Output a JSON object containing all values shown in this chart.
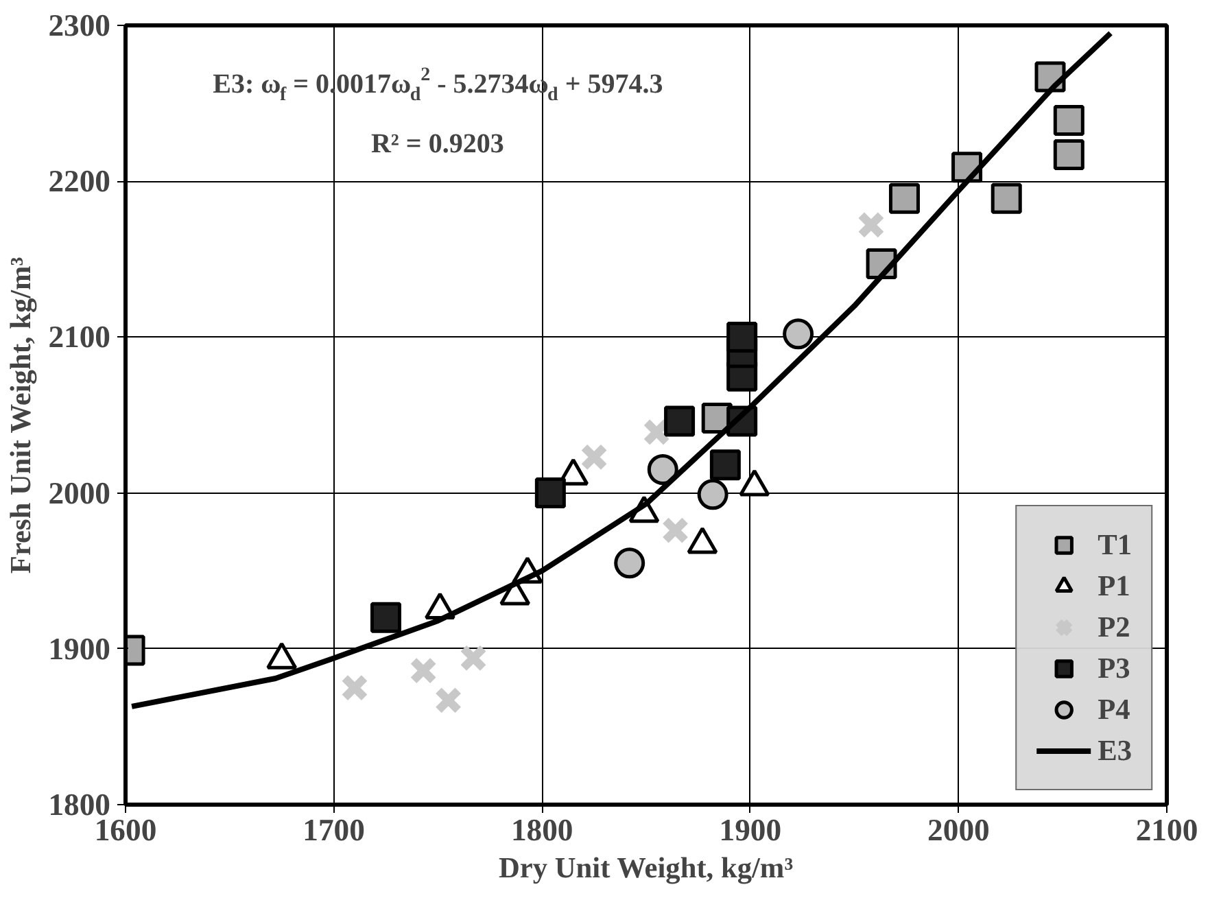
{
  "chart_data": {
    "type": "scatter",
    "xlabel": "Dry Unit Weight, kg/m³",
    "ylabel": "Fresh Unit Weight, kg/m³",
    "xlim": [
      1600,
      2100
    ],
    "ylim": [
      1800,
      2300
    ],
    "xticks": [
      1600,
      1700,
      1800,
      1900,
      2000,
      2100
    ],
    "yticks": [
      1800,
      1900,
      2000,
      2100,
      2200,
      2300
    ],
    "grid": true,
    "legend": "bottom right",
    "annotations": [
      "E3: ω$_{f}$ = 0.0017ω$_{d}$$^{2}$ - 5.2734ω$_{d}$ + 5974.3",
      "R² = 0.9203"
    ],
    "series": [
      {
        "name": "T1",
        "color": "#a8a8a8",
        "marker": "square",
        "x": [
          1602,
          1884,
          1895,
          1897,
          1963,
          1974,
          2004,
          2023,
          2044,
          2053,
          2053
        ],
        "values": [
          1899,
          2048,
          null,
          null,
          2147,
          2189,
          2209,
          2189,
          2267,
          2239,
          2217
        ]
      },
      {
        "name": "P1",
        "color": "#ffffff",
        "marker": "triangle",
        "x": [
          1675,
          1751,
          1787,
          1793,
          1815,
          1849,
          1877,
          1902
        ],
        "values": [
          1893,
          1925,
          1934,
          1948,
          2011,
          1987,
          1967,
          2004
        ]
      },
      {
        "name": "P2",
        "color": "#c8c8c8",
        "marker": "cross",
        "x": [
          1710,
          1743,
          1755,
          1767,
          1825,
          1855,
          1864,
          1958
        ],
        "values": [
          1875,
          1886,
          1867,
          1894,
          2023,
          2039,
          1976,
          2172
        ]
      },
      {
        "name": "P3",
        "color": "#202020",
        "marker": "square",
        "x": [
          1725,
          1804,
          1866,
          1888,
          1896,
          1896,
          1896,
          1896
        ],
        "values": [
          1920,
          2000,
          2046,
          2018,
          2046,
          2075,
          2090,
          2100
        ]
      },
      {
        "name": "P4",
        "color": "#c0c0c0",
        "marker": "circle",
        "x": [
          1842,
          1858,
          1882,
          1923
        ],
        "values": [
          1955,
          2015,
          1999,
          2102
        ]
      },
      {
        "name": "E3",
        "type": "line",
        "color": "#000000",
        "x": [
          1603,
          1672,
          1700,
          1750,
          1800,
          1850,
          1900,
          1950,
          2000,
          2046,
          2073
        ],
        "values": [
          1863,
          1881,
          1894,
          1918,
          1950,
          1993,
          2055,
          2120,
          2194,
          2261,
          2295
        ]
      }
    ]
  }
}
